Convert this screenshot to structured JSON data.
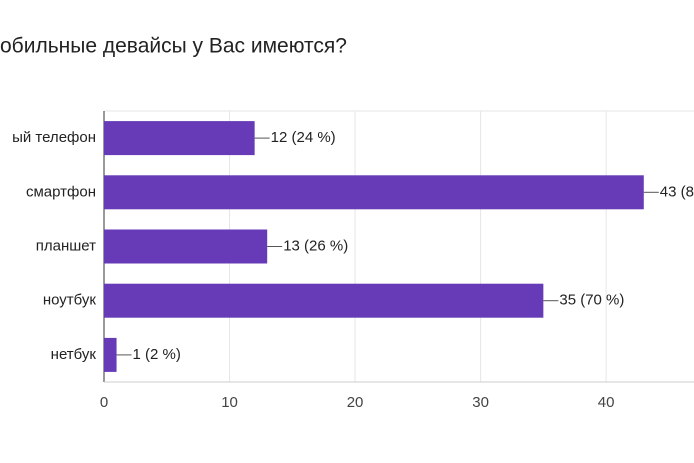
{
  "chart_data": {
    "type": "bar",
    "orientation": "horizontal",
    "title": "обильные девайсы у Вас имеются?",
    "categories": [
      "ый телефон",
      "смартфон",
      "планшет",
      "ноутбук",
      "нетбук"
    ],
    "values": [
      12,
      43,
      13,
      35,
      1
    ],
    "value_labels": [
      "12 (24 %)",
      "43 (8",
      "13 (26 %)",
      "35 (70 %)",
      "1 (2 %)"
    ],
    "color": "#673ab7",
    "xlim": [
      0,
      47
    ],
    "xticks": [
      0,
      10,
      20,
      30,
      40
    ],
    "grid": true
  }
}
